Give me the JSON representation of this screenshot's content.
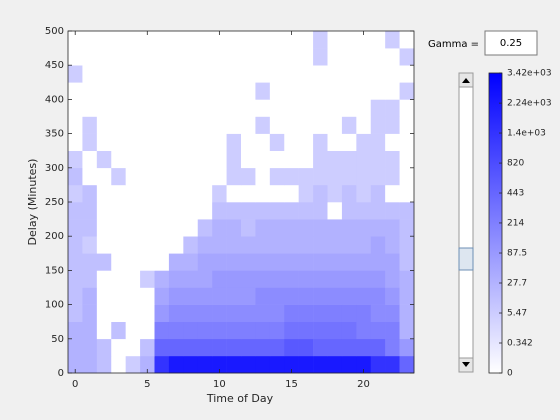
{
  "chart_data": {
    "type": "heatmap",
    "xlabel": "Time of Day",
    "ylabel": "Delay (Minutes)",
    "x": [
      0,
      1,
      2,
      3,
      4,
      5,
      6,
      7,
      8,
      9,
      10,
      11,
      12,
      13,
      14,
      15,
      16,
      17,
      18,
      19,
      20,
      21,
      22,
      23
    ],
    "ybins": [
      0,
      25,
      50,
      75,
      100,
      125,
      150,
      175,
      200,
      225,
      250,
      275,
      300,
      325,
      350,
      375,
      400,
      425,
      450,
      475,
      500
    ],
    "xlim": [
      -0.5,
      23.5
    ],
    "xticks": [
      0,
      5,
      10,
      15,
      20
    ],
    "ylim": [
      0,
      500
    ],
    "yticks": [
      0,
      50,
      100,
      150,
      200,
      250,
      300,
      350,
      400,
      450,
      500
    ],
    "z": [
      [
        28,
        28,
        13,
        0,
        5,
        28,
        1400,
        2244,
        2244,
        2244,
        2244,
        2244,
        2244,
        2244,
        2244,
        2244,
        2244,
        2244,
        2244,
        2244,
        2244,
        1400,
        1400,
        443
      ],
      [
        28,
        28,
        13,
        0,
        0,
        13,
        443,
        443,
        443,
        443,
        443,
        443,
        443,
        443,
        443,
        610,
        610,
        443,
        443,
        443,
        443,
        443,
        214,
        88
      ],
      [
        28,
        28,
        0,
        13,
        0,
        0,
        214,
        214,
        214,
        214,
        214,
        214,
        214,
        214,
        214,
        313,
        313,
        313,
        313,
        313,
        214,
        214,
        214,
        28
      ],
      [
        13,
        28,
        0,
        0,
        0,
        0,
        88,
        140,
        140,
        140,
        140,
        140,
        140,
        140,
        140,
        214,
        214,
        214,
        214,
        214,
        214,
        140,
        140,
        28
      ],
      [
        13,
        28,
        0,
        0,
        0,
        0,
        51,
        88,
        88,
        88,
        88,
        88,
        88,
        140,
        140,
        140,
        140,
        140,
        140,
        140,
        140,
        140,
        88,
        28
      ],
      [
        13,
        13,
        0,
        0,
        0,
        5,
        28,
        51,
        51,
        51,
        88,
        88,
        88,
        88,
        88,
        88,
        88,
        88,
        88,
        88,
        88,
        88,
        51,
        28
      ],
      [
        13,
        13,
        13,
        0,
        0,
        0,
        0,
        28,
        28,
        51,
        51,
        51,
        51,
        51,
        51,
        51,
        51,
        51,
        51,
        51,
        51,
        51,
        51,
        13
      ],
      [
        13,
        5,
        0,
        0,
        0,
        0,
        0,
        0,
        13,
        28,
        28,
        28,
        28,
        28,
        28,
        28,
        28,
        28,
        28,
        28,
        28,
        51,
        28,
        13
      ],
      [
        13,
        13,
        0,
        0,
        0,
        0,
        0,
        0,
        0,
        13,
        28,
        28,
        13,
        28,
        28,
        28,
        28,
        28,
        28,
        28,
        28,
        28,
        28,
        13
      ],
      [
        13,
        13,
        0,
        0,
        0,
        0,
        0,
        0,
        0,
        0,
        13,
        13,
        13,
        13,
        13,
        13,
        13,
        13,
        0,
        13,
        13,
        13,
        13,
        13
      ],
      [
        5,
        13,
        0,
        0,
        0,
        0,
        0,
        0,
        0,
        0,
        5,
        0,
        0,
        0,
        0,
        0,
        5,
        13,
        5,
        13,
        5,
        13,
        0,
        0
      ],
      [
        13,
        0,
        0,
        5,
        0,
        0,
        0,
        0,
        0,
        0,
        0,
        5,
        5,
        0,
        5,
        5,
        5,
        5,
        5,
        5,
        5,
        5,
        5,
        0
      ],
      [
        5,
        0,
        5,
        0,
        0,
        0,
        0,
        0,
        0,
        0,
        0,
        5,
        0,
        0,
        0,
        0,
        0,
        5,
        5,
        5,
        5,
        5,
        5,
        0
      ],
      [
        0,
        5,
        0,
        0,
        0,
        0,
        0,
        0,
        0,
        0,
        0,
        5,
        0,
        0,
        5,
        0,
        0,
        5,
        0,
        0,
        5,
        5,
        0,
        0
      ],
      [
        0,
        5,
        0,
        0,
        0,
        0,
        0,
        0,
        0,
        0,
        0,
        0,
        0,
        5,
        0,
        0,
        0,
        0,
        0,
        5,
        0,
        5,
        5,
        0
      ],
      [
        0,
        0,
        0,
        0,
        0,
        0,
        0,
        0,
        0,
        0,
        0,
        0,
        0,
        0,
        0,
        0,
        0,
        0,
        0,
        0,
        0,
        5,
        5,
        0
      ],
      [
        0,
        0,
        0,
        0,
        0,
        0,
        0,
        0,
        0,
        0,
        0,
        0,
        0,
        5,
        0,
        0,
        0,
        0,
        0,
        0,
        0,
        0,
        0,
        5
      ],
      [
        5,
        0,
        0,
        0,
        0,
        0,
        0,
        0,
        0,
        0,
        0,
        0,
        0,
        0,
        0,
        0,
        0,
        0,
        0,
        0,
        0,
        0,
        0,
        0
      ],
      [
        0,
        0,
        0,
        0,
        0,
        0,
        0,
        0,
        0,
        0,
        0,
        0,
        0,
        0,
        0,
        0,
        0,
        5,
        0,
        0,
        0,
        0,
        0,
        5
      ],
      [
        0,
        0,
        0,
        0,
        0,
        0,
        0,
        0,
        0,
        0,
        0,
        0,
        0,
        0,
        0,
        0,
        0,
        5,
        0,
        0,
        0,
        0,
        5,
        0
      ]
    ],
    "colormap": [
      "#ffffff",
      "#0000ff"
    ],
    "clim": [
      0,
      3420
    ],
    "gamma_label": "Gamma =",
    "gamma": 0.25,
    "colorbar_ticks": [
      0,
      0.342,
      5.47,
      27.7,
      87.5,
      214,
      443,
      820,
      {
        "value": 1400,
        "label": "1.4e+03"
      },
      {
        "value": 2240,
        "label": "2.24e+03"
      },
      {
        "value": 3420,
        "label": "3.42e+03"
      }
    ]
  }
}
